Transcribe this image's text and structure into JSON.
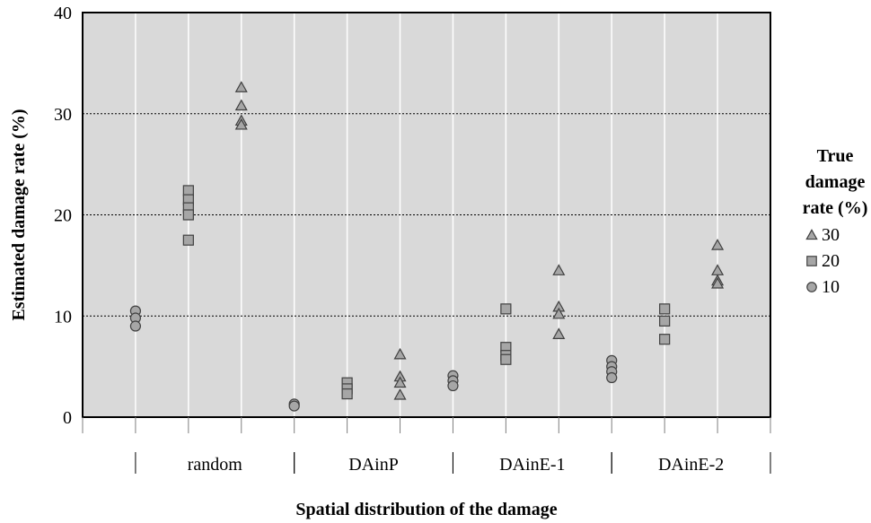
{
  "chart_data": {
    "type": "scatter",
    "xlabel": "Spatial distribution of the damage",
    "ylabel": "Estimated damage rate (%)",
    "ylim": [
      0,
      40
    ],
    "yticks": [
      0,
      10,
      20,
      30,
      40
    ],
    "grid": "horizontal dotted at 10, 20, 30",
    "groups": [
      "random",
      "DAinP",
      "DAinE-1",
      "DAinE-2"
    ],
    "legend": {
      "title_lines": [
        "True",
        "damage",
        "rate (%)"
      ],
      "placement": "right",
      "entries": [
        {
          "label": "30",
          "marker": "triangle"
        },
        {
          "label": "20",
          "marker": "square"
        },
        {
          "label": "10",
          "marker": "circle"
        }
      ]
    },
    "series": [
      {
        "name": "10",
        "marker": "circle",
        "points": [
          {
            "group": "random",
            "values": [
              10.5,
              9.8,
              9.0
            ]
          },
          {
            "group": "DAinP",
            "values": [
              1.3,
              1.1
            ]
          },
          {
            "group": "DAinE-1",
            "values": [
              4.1,
              3.6,
              3.1
            ]
          },
          {
            "group": "DAinE-2",
            "values": [
              5.6,
              5.0,
              4.5,
              3.9
            ]
          }
        ]
      },
      {
        "name": "20",
        "marker": "square",
        "points": [
          {
            "group": "random",
            "values": [
              22.4,
              21.5,
              20.7,
              20.0,
              17.5
            ]
          },
          {
            "group": "DAinP",
            "values": [
              3.4,
              2.8,
              2.3
            ]
          },
          {
            "group": "DAinE-1",
            "values": [
              10.7,
              6.9,
              6.1,
              5.7
            ]
          },
          {
            "group": "DAinE-2",
            "values": [
              10.7,
              9.5,
              7.7
            ]
          }
        ]
      },
      {
        "name": "30",
        "marker": "triangle",
        "points": [
          {
            "group": "random",
            "values": [
              32.6,
              30.8,
              29.3,
              28.9
            ]
          },
          {
            "group": "DAinP",
            "values": [
              6.2,
              4.0,
              3.4,
              2.2
            ]
          },
          {
            "group": "DAinE-1",
            "values": [
              14.5,
              10.9,
              10.2,
              8.2
            ]
          },
          {
            "group": "DAinE-2",
            "values": [
              17.0,
              14.5,
              13.5,
              13.2
            ]
          }
        ]
      }
    ]
  },
  "colors": {
    "plot_background": "#d9d9d9",
    "marker_fill": "#a6a6a6",
    "marker_stroke": "#404040",
    "frame": "#000000",
    "vertical_grid": "#ffffff",
    "horizontal_grid": "#000000"
  }
}
